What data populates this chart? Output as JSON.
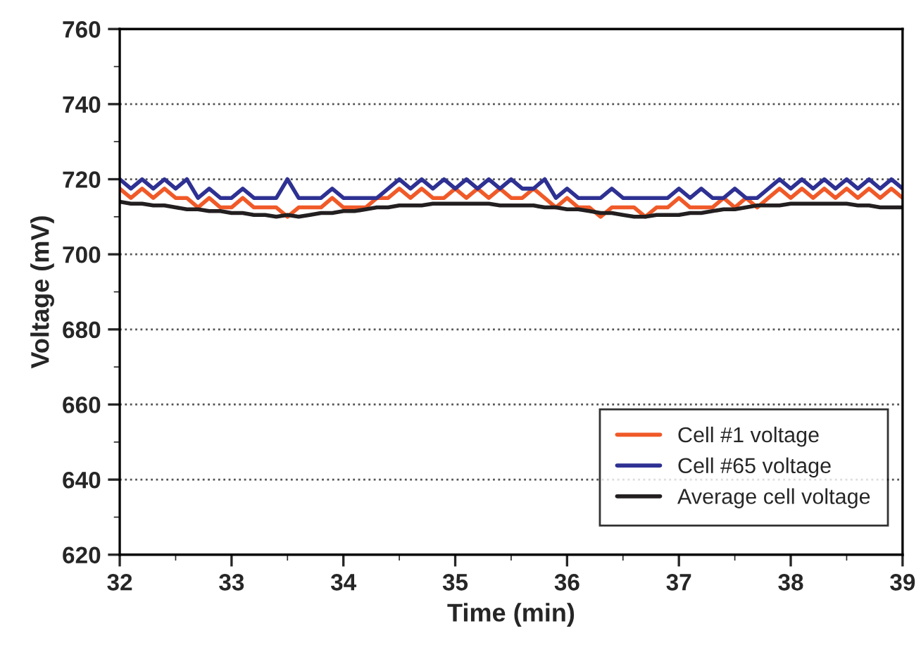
{
  "chart_data": {
    "type": "line",
    "xlabel": "Time (min)",
    "ylabel": "Voltage (mV)",
    "x": [
      32.0,
      32.1,
      32.2,
      32.3,
      32.4,
      32.5,
      32.6,
      32.7,
      32.8,
      32.9,
      33.0,
      33.1,
      33.2,
      33.3,
      33.4,
      33.5,
      33.6,
      33.7,
      33.8,
      33.9,
      34.0,
      34.1,
      34.2,
      34.3,
      34.4,
      34.5,
      34.6,
      34.7,
      34.8,
      34.9,
      35.0,
      35.1,
      35.2,
      35.3,
      35.4,
      35.5,
      35.6,
      35.7,
      35.8,
      35.9,
      36.0,
      36.1,
      36.2,
      36.3,
      36.4,
      36.5,
      36.6,
      36.7,
      36.8,
      36.9,
      37.0,
      37.1,
      37.2,
      37.3,
      37.4,
      37.5,
      37.6,
      37.7,
      37.8,
      37.9,
      38.0,
      38.1,
      38.2,
      38.3,
      38.4,
      38.5,
      38.6,
      38.7,
      38.8,
      38.9,
      39.0
    ],
    "series": [
      {
        "name": "Cell #1 voltage",
        "color": "#f05a28",
        "values": [
          717.5,
          715,
          717.5,
          715,
          717.5,
          715,
          715,
          712.5,
          715,
          712.5,
          712.5,
          715,
          712.5,
          712.5,
          712.5,
          710,
          712.5,
          712.5,
          712.5,
          715,
          712.5,
          712.5,
          712.5,
          715,
          715,
          717.5,
          715,
          717.5,
          715,
          715,
          717.5,
          715,
          717.5,
          715,
          717.5,
          715,
          715,
          717.5,
          715,
          712.5,
          715,
          712.5,
          712.5,
          710,
          712.5,
          712.5,
          712.5,
          710,
          712.5,
          712.5,
          715,
          712.5,
          712.5,
          712.5,
          715,
          712.5,
          715,
          712.5,
          715,
          717.5,
          715,
          717.5,
          715,
          717.5,
          715,
          717.5,
          715,
          717.5,
          715,
          717.5,
          715
        ]
      },
      {
        "name": "Cell #65 voltage",
        "color": "#2e3192",
        "values": [
          720,
          717.5,
          720,
          717.5,
          720,
          717.5,
          720,
          715,
          717.5,
          715,
          715,
          717.5,
          715,
          715,
          715,
          720,
          715,
          715,
          715,
          717.5,
          715,
          715,
          715,
          715,
          717.5,
          720,
          717.5,
          720,
          717.5,
          720,
          717.5,
          720,
          717.5,
          720,
          717.5,
          720,
          717.5,
          717.5,
          720,
          715,
          717.5,
          715,
          715,
          715,
          717.5,
          715,
          715,
          715,
          715,
          715,
          717.5,
          715,
          717.5,
          715,
          715,
          717.5,
          715,
          715,
          717.5,
          720,
          717.5,
          720,
          717.5,
          720,
          717.5,
          720,
          717.5,
          720,
          717.5,
          720,
          717.5
        ]
      },
      {
        "name": "Average cell voltage",
        "color": "#231f20",
        "values": [
          714,
          713.5,
          713.5,
          713,
          713,
          712.5,
          712,
          712,
          711.5,
          711.5,
          711,
          711,
          710.5,
          710.5,
          710,
          710.5,
          710,
          710.5,
          711,
          711,
          711.5,
          711.5,
          712,
          712.5,
          712.5,
          713,
          713,
          713,
          713.5,
          713.5,
          713.5,
          713.5,
          713.5,
          713.5,
          713,
          713,
          713,
          713,
          712.5,
          712.5,
          712,
          712,
          711.5,
          711,
          711,
          710.5,
          710,
          710,
          710.5,
          710.5,
          710.5,
          711,
          711,
          711.5,
          712,
          712,
          712.5,
          713,
          713,
          713,
          713.5,
          713.5,
          713.5,
          713.5,
          713.5,
          713.5,
          713,
          713,
          712.5,
          712.5,
          712.5
        ]
      }
    ],
    "xlim": [
      32,
      39
    ],
    "xticks": [
      32,
      33,
      34,
      35,
      36,
      37,
      38,
      39
    ],
    "ylim": [
      620,
      760
    ],
    "yticks": [
      620,
      640,
      660,
      680,
      700,
      720,
      740,
      760
    ],
    "grid": "y",
    "legend": "bottom right",
    "line_style": "solid",
    "marker": "none"
  }
}
